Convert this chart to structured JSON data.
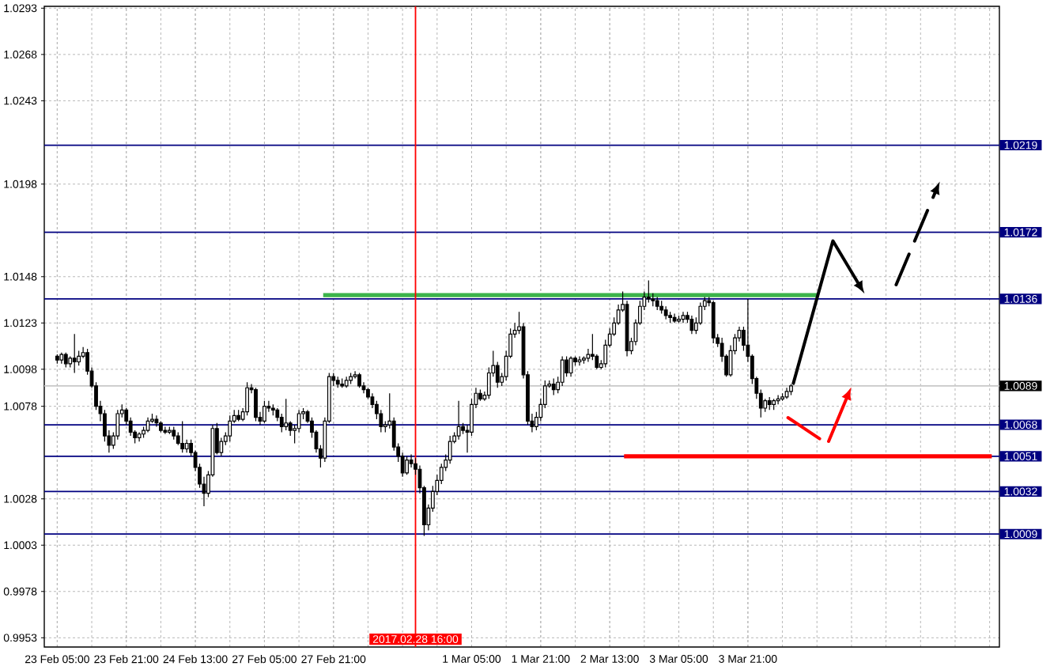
{
  "chart_data": {
    "type": "candlestick",
    "categories": [
      "23 Feb 05:00",
      null,
      null,
      null,
      null,
      null,
      null,
      null,
      null,
      null,
      null,
      null,
      null,
      null,
      null,
      null,
      "23 Feb 21:00",
      null,
      null,
      null,
      null,
      null,
      null,
      null,
      null,
      null,
      null,
      null,
      null,
      null,
      null,
      null,
      "24 Feb 13:00",
      null,
      null,
      null,
      null,
      null,
      null,
      null,
      null,
      null,
      null,
      null,
      null,
      null,
      null,
      null,
      "27 Feb 05:00",
      null,
      null,
      null,
      null,
      null,
      null,
      null,
      null,
      null,
      null,
      null,
      null,
      null,
      null,
      null,
      "27 Feb 21:00",
      null,
      null,
      null,
      null,
      null,
      null,
      null,
      null,
      null,
      null,
      null,
      null,
      null,
      null,
      null,
      null,
      null,
      null,
      "2017.02.28 16:00",
      null,
      null,
      null,
      null,
      null,
      null,
      null,
      null,
      null,
      null,
      null,
      null,
      "1 Mar 05:00",
      null,
      null,
      null,
      null,
      null,
      null,
      null,
      null,
      null,
      null,
      null,
      null,
      null,
      null,
      null,
      "1 Mar 21:00",
      null,
      null,
      null,
      null,
      null,
      null,
      null,
      null,
      null,
      null,
      null,
      null,
      null,
      null,
      null,
      "2 Mar 13:00",
      null,
      null,
      null,
      null,
      null,
      null,
      null,
      null,
      null,
      null,
      null,
      null,
      null,
      null,
      null,
      "3 Mar 05:00",
      null,
      null,
      null,
      null,
      null,
      null,
      null,
      null,
      null,
      null,
      null,
      null,
      null,
      null,
      null,
      "3 Mar 21:00",
      null,
      null,
      null,
      null,
      null,
      null,
      null,
      null,
      null,
      null
    ],
    "ohlc": [
      [
        1.0105,
        1.0106,
        1.0101,
        1.0103
      ],
      [
        1.0103,
        1.0107,
        1.0101,
        1.0106
      ],
      [
        1.0106,
        1.0107,
        1.0099,
        1.0101
      ],
      [
        1.0101,
        1.0105,
        1.0099,
        1.0104
      ],
      [
        1.0104,
        1.0117,
        1.0096,
        1.0102
      ],
      [
        1.0102,
        1.0108,
        1.01,
        1.0105
      ],
      [
        1.0105,
        1.011,
        1.0104,
        1.0107
      ],
      [
        1.0107,
        1.0109,
        1.0095,
        1.0097
      ],
      [
        1.0097,
        1.0099,
        1.0088,
        1.0089
      ],
      [
        1.0089,
        1.0091,
        1.0076,
        1.0078
      ],
      [
        1.0078,
        1.0081,
        1.007,
        1.0074
      ],
      [
        1.0074,
        1.0076,
        1.0059,
        1.0062
      ],
      [
        1.0062,
        1.0065,
        1.0053,
        1.0057
      ],
      [
        1.0057,
        1.0064,
        1.0055,
        1.0062
      ],
      [
        1.0062,
        1.0076,
        1.006,
        1.0074
      ],
      [
        1.0074,
        1.0079,
        1.0072,
        1.0076
      ],
      [
        1.0076,
        1.0077,
        1.0068,
        1.007
      ],
      [
        1.007,
        1.0072,
        1.0062,
        1.0064
      ],
      [
        1.0064,
        1.0065,
        1.0058,
        1.0061
      ],
      [
        1.0061,
        1.0064,
        1.0059,
        1.0063
      ],
      [
        1.0063,
        1.0067,
        1.0061,
        1.0065
      ],
      [
        1.0065,
        1.0072,
        1.0064,
        1.007
      ],
      [
        1.007,
        1.0074,
        1.0069,
        1.0071
      ],
      [
        1.0071,
        1.0073,
        1.0067,
        1.0069
      ],
      [
        1.0069,
        1.007,
        1.0064,
        1.0065
      ],
      [
        1.0065,
        1.0067,
        1.0063,
        1.0064
      ],
      [
        1.0064,
        1.0067,
        1.0063,
        1.0065
      ],
      [
        1.0065,
        1.0067,
        1.006,
        1.0062
      ],
      [
        1.0062,
        1.0064,
        1.0057,
        1.0058
      ],
      [
        1.0058,
        1.007,
        1.0053,
        1.0055
      ],
      [
        1.0055,
        1.006,
        1.0053,
        1.0058
      ],
      [
        1.0058,
        1.006,
        1.0051,
        1.0053
      ],
      [
        1.0053,
        1.0054,
        1.0043,
        1.0045
      ],
      [
        1.0045,
        1.0047,
        1.0034,
        1.0036
      ],
      [
        1.0036,
        1.004,
        1.0024,
        1.0031
      ],
      [
        1.0031,
        1.0043,
        1.0029,
        1.0041
      ],
      [
        1.0041,
        1.0068,
        1.004,
        1.0066
      ],
      [
        1.0066,
        1.0069,
        1.0052,
        1.0053
      ],
      [
        1.0053,
        1.0061,
        1.0051,
        1.0059
      ],
      [
        1.0059,
        1.0064,
        1.0057,
        1.0062
      ],
      [
        1.0062,
        1.0073,
        1.0059,
        1.007
      ],
      [
        1.007,
        1.0076,
        1.0069,
        1.0073
      ],
      [
        1.0073,
        1.0076,
        1.007,
        1.0071
      ],
      [
        1.0071,
        1.0077,
        1.007,
        1.0075
      ],
      [
        1.0075,
        1.0091,
        1.0073,
        1.0088
      ],
      [
        1.0088,
        1.009,
        1.0085,
        1.0087
      ],
      [
        1.0087,
        1.0088,
        1.007,
        1.0072
      ],
      [
        1.0072,
        1.0075,
        1.0068,
        1.007
      ],
      [
        1.007,
        1.0081,
        1.0069,
        1.0078
      ],
      [
        1.0078,
        1.0081,
        1.0075,
        1.0077
      ],
      [
        1.0077,
        1.0079,
        1.0073,
        1.0076
      ],
      [
        1.0076,
        1.0077,
        1.007,
        1.0072
      ],
      [
        1.0072,
        1.0074,
        1.0064,
        1.0067
      ],
      [
        1.0067,
        1.0082,
        1.0065,
        1.0069
      ],
      [
        1.0069,
        1.007,
        1.0062,
        1.0065
      ],
      [
        1.0065,
        1.0068,
        1.0058,
        1.0066
      ],
      [
        1.0066,
        1.0076,
        1.0064,
        1.0074
      ],
      [
        1.0074,
        1.0077,
        1.0071,
        1.0075
      ],
      [
        1.0075,
        1.0076,
        1.0069,
        1.007
      ],
      [
        1.007,
        1.0072,
        1.0061,
        1.0064
      ],
      [
        1.0064,
        1.0065,
        1.0053,
        1.0055
      ],
      [
        1.0055,
        1.0057,
        1.0045,
        1.005
      ],
      [
        1.005,
        1.0072,
        1.0048,
        1.007
      ],
      [
        1.007,
        1.0096,
        1.0069,
        1.0094
      ],
      [
        1.0094,
        1.0096,
        1.0089,
        1.0092
      ],
      [
        1.0092,
        1.0094,
        1.0088,
        1.009
      ],
      [
        1.009,
        1.0093,
        1.0088,
        1.0089
      ],
      [
        1.0089,
        1.0094,
        1.0088,
        1.0092
      ],
      [
        1.0092,
        1.0096,
        1.009,
        1.0094
      ],
      [
        1.0094,
        1.0097,
        1.0093,
        1.0095
      ],
      [
        1.0095,
        1.0096,
        1.0088,
        1.0089
      ],
      [
        1.0089,
        1.0091,
        1.0085,
        1.0087
      ],
      [
        1.0087,
        1.0088,
        1.0082,
        1.0083
      ],
      [
        1.0083,
        1.0085,
        1.0077,
        1.0079
      ],
      [
        1.0079,
        1.0081,
        1.0071,
        1.0074
      ],
      [
        1.0074,
        1.0076,
        1.0064,
        1.0067
      ],
      [
        1.0067,
        1.007,
        1.0064,
        1.0068
      ],
      [
        1.0068,
        1.0085,
        1.0066,
        1.007
      ],
      [
        1.007,
        1.0072,
        1.0054,
        1.0056
      ],
      [
        1.0056,
        1.0058,
        1.0048,
        1.0051
      ],
      [
        1.0051,
        1.0053,
        1.004,
        1.0042
      ],
      [
        1.0042,
        1.0051,
        1.0041,
        1.0049
      ],
      [
        1.0049,
        1.0052,
        1.0045,
        1.0047
      ],
      [
        1.0047,
        1.005,
        1.0041,
        1.0044
      ],
      [
        1.0044,
        1.0046,
        1.0031,
        1.0034
      ],
      [
        1.0034,
        1.0035,
        1.0008,
        1.0014
      ],
      [
        1.0014,
        1.0025,
        1.0011,
        1.0023
      ],
      [
        1.0023,
        1.0035,
        1.0021,
        1.0032
      ],
      [
        1.0032,
        1.0041,
        1.003,
        1.0038
      ],
      [
        1.0038,
        1.0047,
        1.0036,
        1.0045
      ],
      [
        1.0045,
        1.0052,
        1.0043,
        1.0049
      ],
      [
        1.0049,
        1.0062,
        1.0047,
        1.0059
      ],
      [
        1.0059,
        1.0064,
        1.0058,
        1.0062
      ],
      [
        1.0062,
        1.0081,
        1.006,
        1.0067
      ],
      [
        1.0067,
        1.0069,
        1.0063,
        1.0065
      ],
      [
        1.0065,
        1.0068,
        1.0053,
        1.0064
      ],
      [
        1.0064,
        1.0082,
        1.0062,
        1.0079
      ],
      [
        1.0079,
        1.0088,
        1.0077,
        1.0085
      ],
      [
        1.0085,
        1.0087,
        1.0081,
        1.0082
      ],
      [
        1.0082,
        1.0086,
        1.0081,
        1.0084
      ],
      [
        1.0084,
        1.0099,
        1.0082,
        1.0096
      ],
      [
        1.0096,
        1.0108,
        1.0094,
        1.01
      ],
      [
        1.01,
        1.0102,
        1.0088,
        1.0091
      ],
      [
        1.0091,
        1.0096,
        1.0089,
        1.0094
      ],
      [
        1.0094,
        1.0108,
        1.0092,
        1.0105
      ],
      [
        1.0105,
        1.012,
        1.0104,
        1.0117
      ],
      [
        1.0117,
        1.0123,
        1.0115,
        1.0119
      ],
      [
        1.0119,
        1.0129,
        1.0117,
        1.0121
      ],
      [
        1.0121,
        1.0123,
        1.0093,
        1.0095
      ],
      [
        1.0095,
        1.0097,
        1.0068,
        1.007
      ],
      [
        1.007,
        1.0074,
        1.0064,
        1.0067
      ],
      [
        1.0067,
        1.0075,
        1.0065,
        1.0072
      ],
      [
        1.0072,
        1.0082,
        1.007,
        1.0079
      ],
      [
        1.0079,
        1.0092,
        1.0077,
        1.0089
      ],
      [
        1.0089,
        1.0092,
        1.0088,
        1.009
      ],
      [
        1.009,
        1.0093,
        1.0084,
        1.0087
      ],
      [
        1.0087,
        1.0094,
        1.0085,
        1.0091
      ],
      [
        1.0091,
        1.0105,
        1.0089,
        1.0103
      ],
      [
        1.0103,
        1.0105,
        1.0094,
        1.0096
      ],
      [
        1.0096,
        1.0105,
        1.0094,
        1.0104
      ],
      [
        1.0104,
        1.0105,
        1.01,
        1.0102
      ],
      [
        1.0102,
        1.0105,
        1.01,
        1.0103
      ],
      [
        1.0103,
        1.0105,
        1.0101,
        1.0104
      ],
      [
        1.0104,
        1.0109,
        1.0102,
        1.0106
      ],
      [
        1.0106,
        1.0117,
        1.0103,
        1.0105
      ],
      [
        1.0105,
        1.0106,
        1.0098,
        1.0099
      ],
      [
        1.0099,
        1.0103,
        1.0098,
        1.0101
      ],
      [
        1.0101,
        1.0114,
        1.0099,
        1.0111
      ],
      [
        1.0111,
        1.012,
        1.011,
        1.0117
      ],
      [
        1.0117,
        1.0126,
        1.0116,
        1.0123
      ],
      [
        1.0123,
        1.0133,
        1.0122,
        1.013
      ],
      [
        1.013,
        1.014,
        1.0129,
        1.0133
      ],
      [
        1.0133,
        1.0135,
        1.0105,
        1.0108
      ],
      [
        1.0108,
        1.0115,
        1.0106,
        1.0113
      ],
      [
        1.0113,
        1.0125,
        1.0111,
        1.0123
      ],
      [
        1.0123,
        1.0135,
        1.0122,
        1.0132
      ],
      [
        1.0132,
        1.014,
        1.013,
        1.0137
      ],
      [
        1.0137,
        1.0146,
        1.0134,
        1.0136
      ],
      [
        1.0136,
        1.0139,
        1.0132,
        1.0135
      ],
      [
        1.0135,
        1.0137,
        1.013,
        1.0132
      ],
      [
        1.0132,
        1.0135,
        1.0128,
        1.013
      ],
      [
        1.013,
        1.0132,
        1.0125,
        1.0127
      ],
      [
        1.0127,
        1.0129,
        1.0123,
        1.0126
      ],
      [
        1.0126,
        1.0128,
        1.0123,
        1.0124
      ],
      [
        1.0124,
        1.0127,
        1.0123,
        1.0125
      ],
      [
        1.0125,
        1.0129,
        1.0123,
        1.0127
      ],
      [
        1.0127,
        1.0129,
        1.0123,
        1.0125
      ],
      [
        1.0125,
        1.0127,
        1.0117,
        1.0119
      ],
      [
        1.0119,
        1.0126,
        1.0117,
        1.0123
      ],
      [
        1.0123,
        1.0134,
        1.0122,
        1.0132
      ],
      [
        1.0132,
        1.0137,
        1.013,
        1.0135
      ],
      [
        1.0135,
        1.0137,
        1.0132,
        1.0134
      ],
      [
        1.0134,
        1.0135,
        1.0112,
        1.0115
      ],
      [
        1.0115,
        1.0117,
        1.011,
        1.0112
      ],
      [
        1.0112,
        1.0115,
        1.0102,
        1.0105
      ],
      [
        1.0105,
        1.0106,
        1.0094,
        1.0095
      ],
      [
        1.0095,
        1.0111,
        1.0094,
        1.0108
      ],
      [
        1.0108,
        1.0117,
        1.0106,
        1.0115
      ],
      [
        1.0115,
        1.0121,
        1.0113,
        1.0119
      ],
      [
        1.0119,
        1.0121,
        1.0108,
        1.0111
      ],
      [
        1.0111,
        1.0136,
        1.0102,
        1.0105
      ],
      [
        1.0105,
        1.0106,
        1.009,
        1.0093
      ],
      [
        1.0093,
        1.0094,
        1.0082,
        1.0085
      ],
      [
        1.0085,
        1.0087,
        1.0072,
        1.0077
      ],
      [
        1.0077,
        1.0082,
        1.0075,
        1.0081
      ],
      [
        1.0081,
        1.0083,
        1.0076,
        1.0079
      ],
      [
        1.0079,
        1.0082,
        1.0076,
        1.0081
      ],
      [
        1.0081,
        1.0084,
        1.0079,
        1.0082
      ],
      [
        1.0082,
        1.0085,
        1.0081,
        1.0083
      ],
      [
        1.0083,
        1.0088,
        1.0082,
        1.0086
      ],
      [
        1.0086,
        1.009,
        1.0084,
        1.0089
      ]
    ],
    "ylim": [
      0.9948,
      1.0294
    ],
    "yticks": [
      1.0293,
      1.0268,
      1.0243,
      1.0198,
      1.0148,
      1.0123,
      1.0098,
      1.0078,
      1.0028,
      1.0003,
      0.9978,
      0.9953
    ],
    "grid": true,
    "ref_lines": [
      {
        "axis": "y",
        "value": 1.0219,
        "label": "1.0219",
        "color": "#000080"
      },
      {
        "axis": "y",
        "value": 1.0172,
        "label": "1.0172",
        "color": "#000080"
      },
      {
        "axis": "y",
        "value": 1.0136,
        "label": "1.0136",
        "color": "#000080"
      },
      {
        "axis": "y",
        "value": 1.0089,
        "label": "1.0089",
        "color": "#c8c8c8"
      },
      {
        "axis": "y",
        "value": 1.0068,
        "label": "1.0068",
        "color": "#000080"
      },
      {
        "axis": "y",
        "value": 1.0051,
        "label": "1.0051",
        "color": "#000080"
      },
      {
        "axis": "y",
        "value": 1.0032,
        "label": "1.0032",
        "color": "#000080"
      },
      {
        "axis": "y",
        "value": 1.0009,
        "label": "1.0009",
        "color": "#000080"
      },
      {
        "axis": "y",
        "value": 1.0138,
        "color": "#3cb44b"
      },
      {
        "axis": "y",
        "value": 1.0051,
        "color": "#ff0000"
      },
      {
        "axis": "x",
        "value": "2017.02.28 16:00",
        "color": "#ff0000"
      }
    ]
  }
}
